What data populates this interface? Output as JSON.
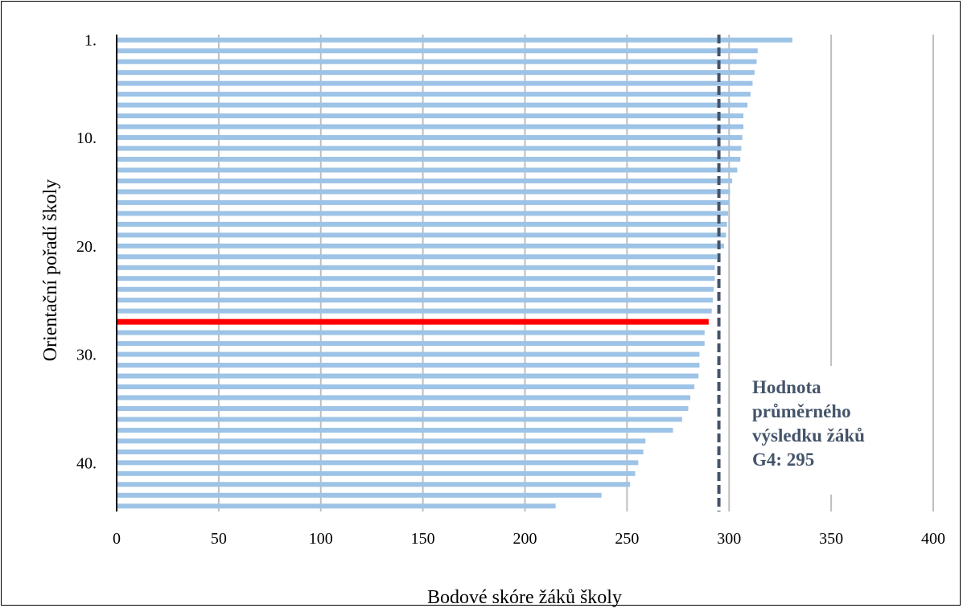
{
  "chart_data": {
    "type": "bar",
    "orientation": "horizontal",
    "xlabel": "Bodové skóre žáků školy",
    "ylabel": "Orientační pořadí školy",
    "xlim": [
      0,
      400
    ],
    "xticks": [
      0,
      50,
      100,
      150,
      200,
      250,
      300,
      350,
      400
    ],
    "y_tick_labels": [
      {
        "rank": 1,
        "label": "1."
      },
      {
        "rank": 10,
        "label": "10."
      },
      {
        "rank": 20,
        "label": "20."
      },
      {
        "rank": 30,
        "label": "30."
      },
      {
        "rank": 40,
        "label": "40."
      }
    ],
    "values": [
      331,
      314,
      313.5,
      312.5,
      311.5,
      310.5,
      309,
      307,
      307,
      306.5,
      306,
      305.5,
      304,
      301.5,
      300.5,
      300,
      299.5,
      299,
      298.5,
      297.5,
      294,
      293,
      293,
      292.5,
      292,
      291.5,
      290,
      288,
      288,
      285.5,
      285.5,
      285,
      283,
      281,
      280,
      277,
      272.5,
      259,
      258,
      255.5,
      254,
      251.5,
      237.5,
      215
    ],
    "highlight_rank": 27,
    "bar_color": "#9dc3e6",
    "highlight_color": "#ff0000",
    "grid": "vertical",
    "reference_line": {
      "value": 295,
      "color": "#44546a",
      "style": "dashed",
      "label_lines": [
        "Hodnota",
        "průměrného",
        "výsledku žáků",
        "G4: 295"
      ]
    }
  }
}
